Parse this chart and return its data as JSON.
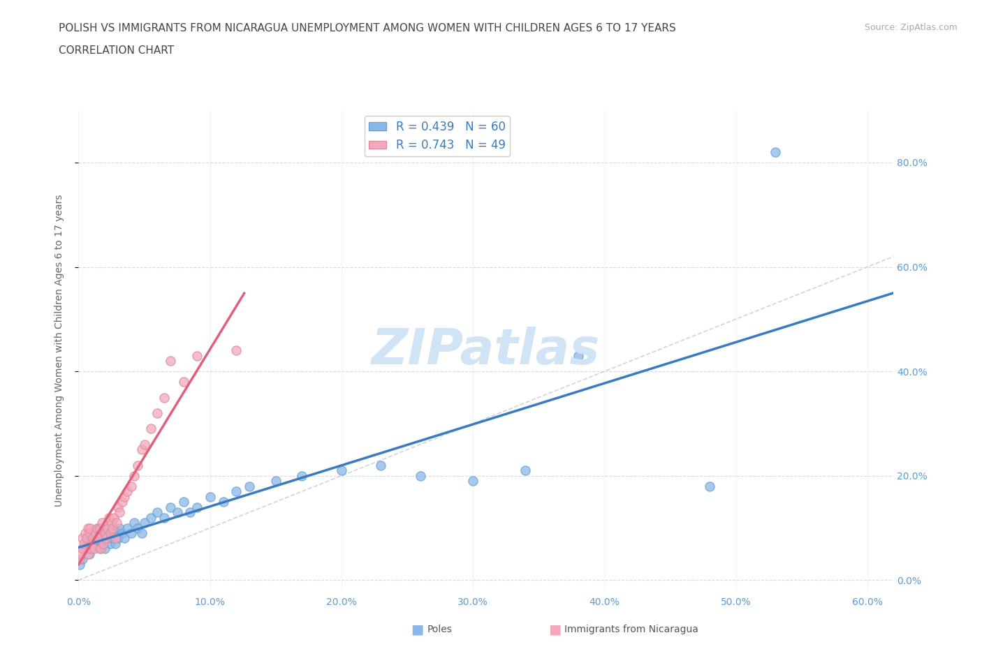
{
  "title_line1": "POLISH VS IMMIGRANTS FROM NICARAGUA UNEMPLOYMENT AMONG WOMEN WITH CHILDREN AGES 6 TO 17 YEARS",
  "title_line2": "CORRELATION CHART",
  "source": "Source: ZipAtlas.com",
  "ylabel_label": "Unemployment Among Women with Children Ages 6 to 17 years",
  "xlim": [
    0.0,
    0.62
  ],
  "ylim": [
    -0.02,
    0.9
  ],
  "poles_color": "#8ab8e8",
  "poles_edge_color": "#6a9fd4",
  "nicaragua_color": "#f4a8bc",
  "nicaragua_edge_color": "#e08898",
  "poles_line_color": "#3a7abf",
  "nicaragua_line_color": "#e0607a",
  "diagonal_color": "#c8c8c8",
  "poles_R": 0.439,
  "poles_N": 60,
  "nicaragua_R": 0.743,
  "nicaragua_N": 49,
  "poles_scatter_x": [
    0.001,
    0.003,
    0.005,
    0.007,
    0.008,
    0.009,
    0.01,
    0.01,
    0.011,
    0.012,
    0.013,
    0.014,
    0.015,
    0.015,
    0.016,
    0.017,
    0.018,
    0.019,
    0.02,
    0.021,
    0.022,
    0.023,
    0.024,
    0.025,
    0.026,
    0.027,
    0.028,
    0.029,
    0.03,
    0.031,
    0.033,
    0.035,
    0.037,
    0.04,
    0.042,
    0.045,
    0.048,
    0.05,
    0.055,
    0.06,
    0.065,
    0.07,
    0.075,
    0.08,
    0.085,
    0.09,
    0.1,
    0.11,
    0.12,
    0.13,
    0.15,
    0.17,
    0.2,
    0.23,
    0.26,
    0.3,
    0.34,
    0.38,
    0.48,
    0.53
  ],
  "poles_scatter_y": [
    0.03,
    0.04,
    0.06,
    0.07,
    0.05,
    0.08,
    0.06,
    0.09,
    0.07,
    0.08,
    0.09,
    0.07,
    0.08,
    0.1,
    0.06,
    0.09,
    0.07,
    0.08,
    0.06,
    0.09,
    0.08,
    0.1,
    0.07,
    0.09,
    0.08,
    0.1,
    0.07,
    0.09,
    0.08,
    0.1,
    0.09,
    0.08,
    0.1,
    0.09,
    0.11,
    0.1,
    0.09,
    0.11,
    0.12,
    0.13,
    0.12,
    0.14,
    0.13,
    0.15,
    0.13,
    0.14,
    0.16,
    0.15,
    0.17,
    0.18,
    0.19,
    0.2,
    0.21,
    0.22,
    0.2,
    0.19,
    0.21,
    0.43,
    0.18,
    0.82
  ],
  "nicaragua_scatter_x": [
    0.001,
    0.002,
    0.003,
    0.003,
    0.004,
    0.005,
    0.006,
    0.007,
    0.007,
    0.008,
    0.009,
    0.009,
    0.01,
    0.011,
    0.012,
    0.013,
    0.014,
    0.015,
    0.016,
    0.017,
    0.018,
    0.019,
    0.02,
    0.021,
    0.022,
    0.023,
    0.024,
    0.025,
    0.026,
    0.027,
    0.028,
    0.029,
    0.03,
    0.031,
    0.033,
    0.035,
    0.037,
    0.04,
    0.042,
    0.045,
    0.048,
    0.05,
    0.055,
    0.06,
    0.065,
    0.07,
    0.08,
    0.09,
    0.12
  ],
  "nicaragua_scatter_y": [
    0.04,
    0.05,
    0.06,
    0.08,
    0.07,
    0.09,
    0.08,
    0.1,
    0.05,
    0.09,
    0.06,
    0.1,
    0.07,
    0.08,
    0.06,
    0.09,
    0.1,
    0.08,
    0.1,
    0.06,
    0.11,
    0.07,
    0.09,
    0.08,
    0.1,
    0.12,
    0.09,
    0.11,
    0.1,
    0.12,
    0.08,
    0.11,
    0.14,
    0.13,
    0.15,
    0.16,
    0.17,
    0.18,
    0.2,
    0.22,
    0.25,
    0.26,
    0.29,
    0.32,
    0.35,
    0.42,
    0.38,
    0.43,
    0.44
  ],
  "background_color": "#ffffff",
  "grid_color": "#d0d0d0",
  "title_color": "#444444",
  "axis_tick_color": "#5b9bd5",
  "watermark_color": "#d0e4f5",
  "legend_label_color": "#3a7abf"
}
